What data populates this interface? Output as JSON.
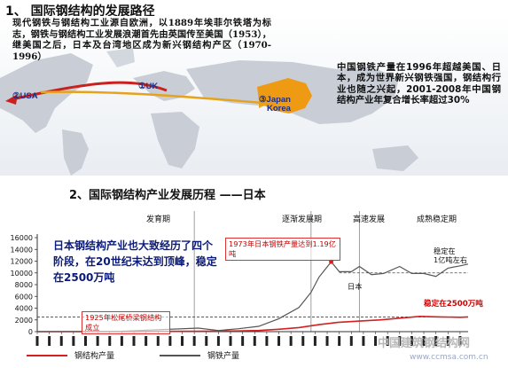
{
  "section1": {
    "title": "1、 国际钢结构的发展路径",
    "paragraph": "现代钢铁与钢结构工业源自欧洲，以1889年埃菲尔铁塔为标志，钢铁与钢结构工业发展浪潮首先由英国传至美国（1953），继美国之后，日本及台湾地区成为新兴钢结构产区（1970-1996）",
    "map_labels": {
      "usa": "USA",
      "uk": "UK",
      "japan": "Japan",
      "korea": "Korea",
      "n1": "①",
      "n2": "②",
      "n3": "③"
    },
    "china_text": "中国钢铁产量在1996年超越美国、日本，成为世界新兴钢铁强国，钢结构行业也随之兴起，2001-2008年中国钢结构产业年复合增长率超过30%"
  },
  "section2": {
    "title": "2、国际钢结构产业发展历程 ——日本",
    "phases": [
      "发育期",
      "逐渐发展期",
      "高速发展",
      "成熟稳定期"
    ],
    "note": "日本钢结构产业也大致经历了四个阶段，在20世纪末达到顶峰，稳定在2500万吨",
    "box_1973": "1973年日本钢铁产量达到1.19亿吨",
    "box_1925": "1925年松尾桥梁钢结构成立",
    "label_stable_1": "稳定在",
    "label_stable_2": "1亿吨左右",
    "label_2500": "稳定在2500万吨",
    "label_japan": "日本",
    "legend": {
      "steel_structure": "钢结构产量",
      "steel": "钢铁产量"
    }
  },
  "watermark": {
    "main": "中国建筑钢结构网",
    "url": "www.ccmsa.com.cn"
  },
  "colors": {
    "red": "#d42020",
    "darkred": "#c00000",
    "gray": "#555555",
    "dashed": "#4a4a4a",
    "blue_text": "#0a1a7a"
  },
  "chart_data": {
    "type": "line",
    "title": "",
    "xlabel": "",
    "ylabel": "",
    "ylim": [
      0,
      16000
    ],
    "yticks": [
      0,
      2000,
      4000,
      6000,
      8000,
      10000,
      12000,
      14000,
      16000
    ],
    "xrange": [
      1900,
      2007
    ],
    "series": [
      {
        "name": "钢结构产量",
        "x": [
          1900,
          1910,
          1920,
          1925,
          1930,
          1940,
          1950,
          1955,
          1960,
          1965,
          1970,
          1975,
          1980,
          1985,
          1990,
          1995,
          2000,
          2005,
          2007
        ],
        "y": [
          0,
          0,
          0,
          20,
          40,
          80,
          120,
          200,
          400,
          700,
          1200,
          1600,
          1800,
          2000,
          2300,
          2600,
          2500,
          2450,
          2500
        ]
      },
      {
        "name": "钢铁产量",
        "x": [
          1900,
          1920,
          1940,
          1945,
          1950,
          1955,
          1960,
          1965,
          1968,
          1970,
          1973,
          1975,
          1978,
          1980,
          1983,
          1986,
          1990,
          1993,
          1996,
          1999,
          2002,
          2005,
          2007
        ],
        "y": [
          0,
          50,
          600,
          200,
          500,
          900,
          2200,
          4100,
          6700,
          9300,
          11900,
          10200,
          10200,
          11100,
          9700,
          9900,
          11100,
          9900,
          9900,
          9400,
          10800,
          11200,
          11500
        ]
      }
    ]
  }
}
